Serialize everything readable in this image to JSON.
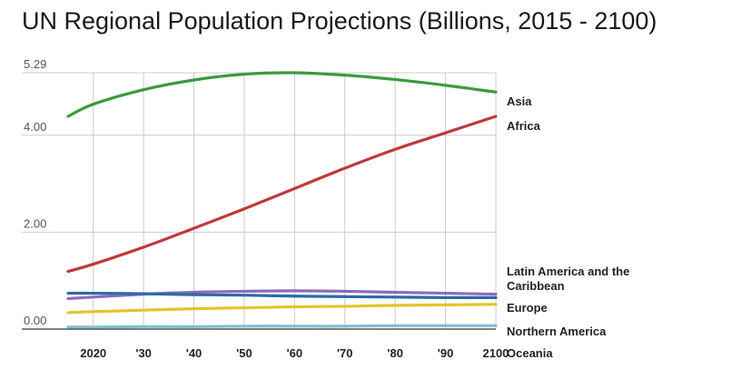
{
  "chart_data": {
    "type": "line",
    "title": "UN Regional Population Projections (Billions, 2015 - 2100)",
    "xlabel": "",
    "ylabel": "",
    "xlim": [
      2015,
      2100
    ],
    "ylim": [
      0,
      5.29
    ],
    "y_ticks": [
      {
        "value": 0,
        "label": "0.00"
      },
      {
        "value": 2,
        "label": "2.00"
      },
      {
        "value": 4,
        "label": "4.00"
      },
      {
        "value": 5.29,
        "label": "5.29"
      }
    ],
    "x_ticks": [
      {
        "value": 2020,
        "label": "2020"
      },
      {
        "value": 2030,
        "label": "'30"
      },
      {
        "value": 2040,
        "label": "'40"
      },
      {
        "value": 2050,
        "label": "'50"
      },
      {
        "value": 2060,
        "label": "'60"
      },
      {
        "value": 2070,
        "label": "'70"
      },
      {
        "value": 2080,
        "label": "'80"
      },
      {
        "value": 2090,
        "label": "'90"
      },
      {
        "value": 2100,
        "label": "2100"
      }
    ],
    "grid": true,
    "legend": "right, inline labels",
    "x": [
      2015,
      2020,
      2030,
      2040,
      2050,
      2060,
      2070,
      2080,
      2090,
      2100
    ],
    "series": [
      {
        "name": "Asia",
        "color": "#3c9a3c",
        "values": [
          4.39,
          4.64,
          4.94,
          5.14,
          5.26,
          5.29,
          5.24,
          5.15,
          5.03,
          4.89
        ]
      },
      {
        "name": "Africa",
        "color": "#c0393b",
        "values": [
          1.19,
          1.34,
          1.69,
          2.08,
          2.48,
          2.9,
          3.32,
          3.71,
          4.05,
          4.39
        ]
      },
      {
        "name": "Latin America and the Caribbean",
        "color": "#8e6bbd",
        "values": [
          0.63,
          0.66,
          0.72,
          0.76,
          0.78,
          0.79,
          0.78,
          0.76,
          0.74,
          0.72
        ]
      },
      {
        "name": "Europe",
        "color": "#e2c52a",
        "values": [
          0.34,
          0.36,
          0.39,
          0.42,
          0.44,
          0.46,
          0.47,
          0.49,
          0.5,
          0.51
        ]
      },
      {
        "name": "Northern America",
        "color": "#2b6aa8",
        "values": [
          0.74,
          0.74,
          0.73,
          0.71,
          0.7,
          0.68,
          0.67,
          0.66,
          0.65,
          0.65
        ]
      },
      {
        "name": "Oceania",
        "color": "#7fbfcf",
        "values": [
          0.04,
          0.04,
          0.05,
          0.05,
          0.06,
          0.06,
          0.06,
          0.07,
          0.07,
          0.07
        ]
      }
    ]
  }
}
